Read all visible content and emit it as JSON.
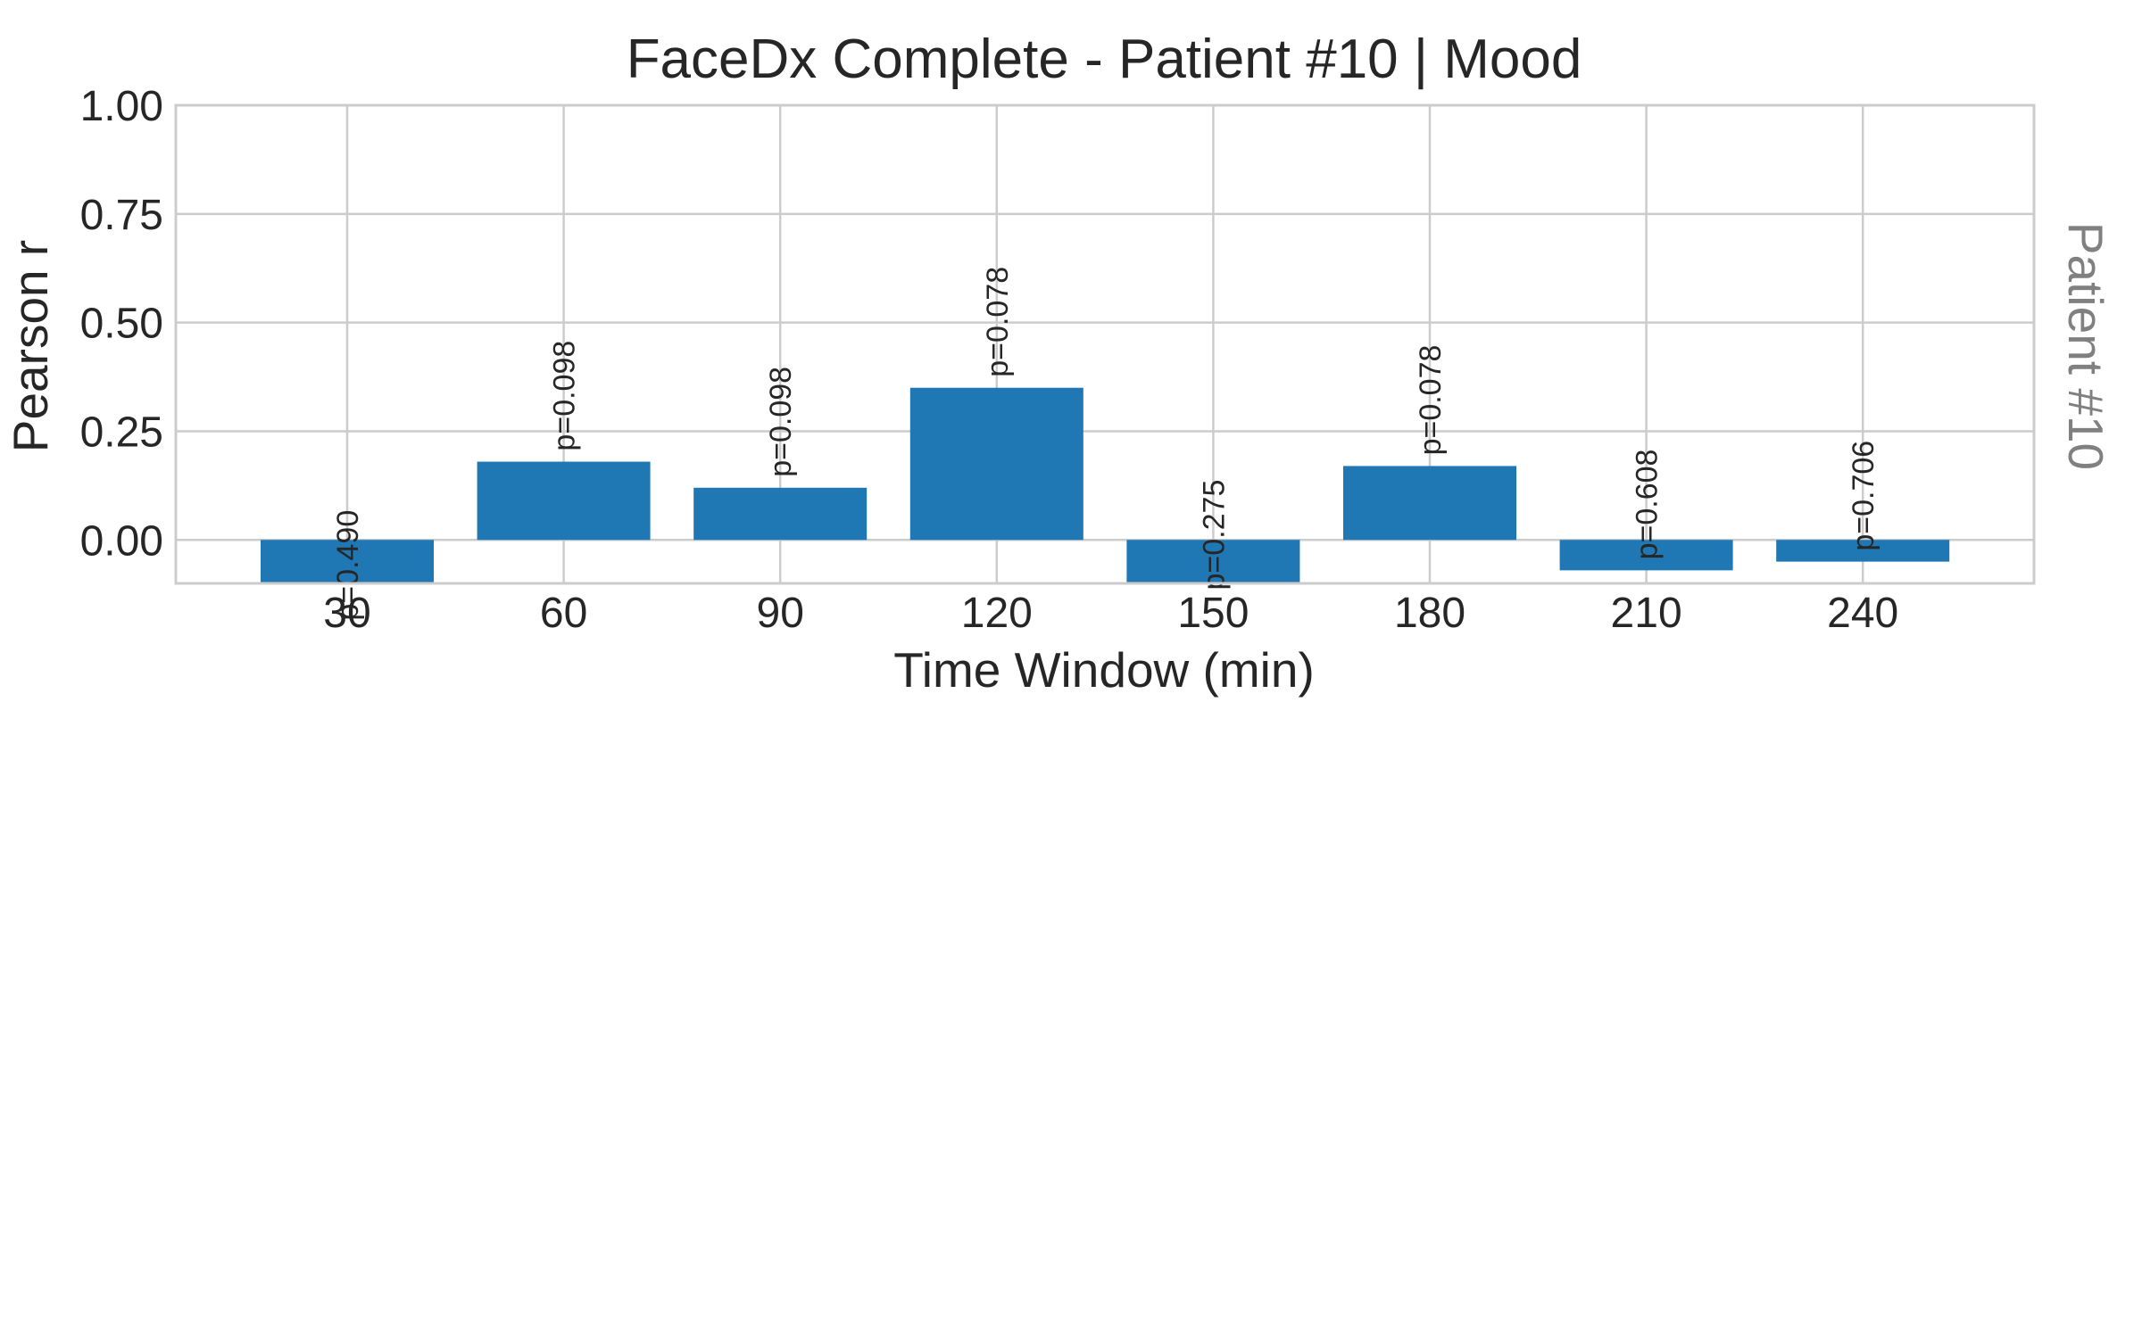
{
  "chart_data": {
    "type": "bar",
    "title": "FaceDx Complete - Patient #10 | Mood",
    "xlabel": "Time Window (min)",
    "ylabel": "Pearson r",
    "side_label": "Patient #10",
    "categories": [
      "30",
      "60",
      "90",
      "120",
      "150",
      "180",
      "210",
      "240"
    ],
    "values": [
      -0.21,
      0.18,
      0.12,
      0.35,
      -0.14,
      0.17,
      -0.07,
      -0.05
    ],
    "bar_labels": [
      "p=0.490",
      "p=0.098",
      "p=0.098",
      "p=0.078",
      "p=0.275",
      "p=0.078",
      "p=0.608",
      "p=0.706"
    ],
    "ylim": [
      -0.1,
      1.0
    ],
    "yticks": [
      "1.00",
      "0.75",
      "0.50",
      "0.25",
      "0.00"
    ],
    "ytick_values": [
      1.0,
      0.75,
      0.5,
      0.25,
      0.0
    ],
    "grid": true,
    "colors": {
      "bar": "#1f77b4",
      "grid": "#cccccc",
      "text": "#262626",
      "side_label": "#808080"
    }
  }
}
